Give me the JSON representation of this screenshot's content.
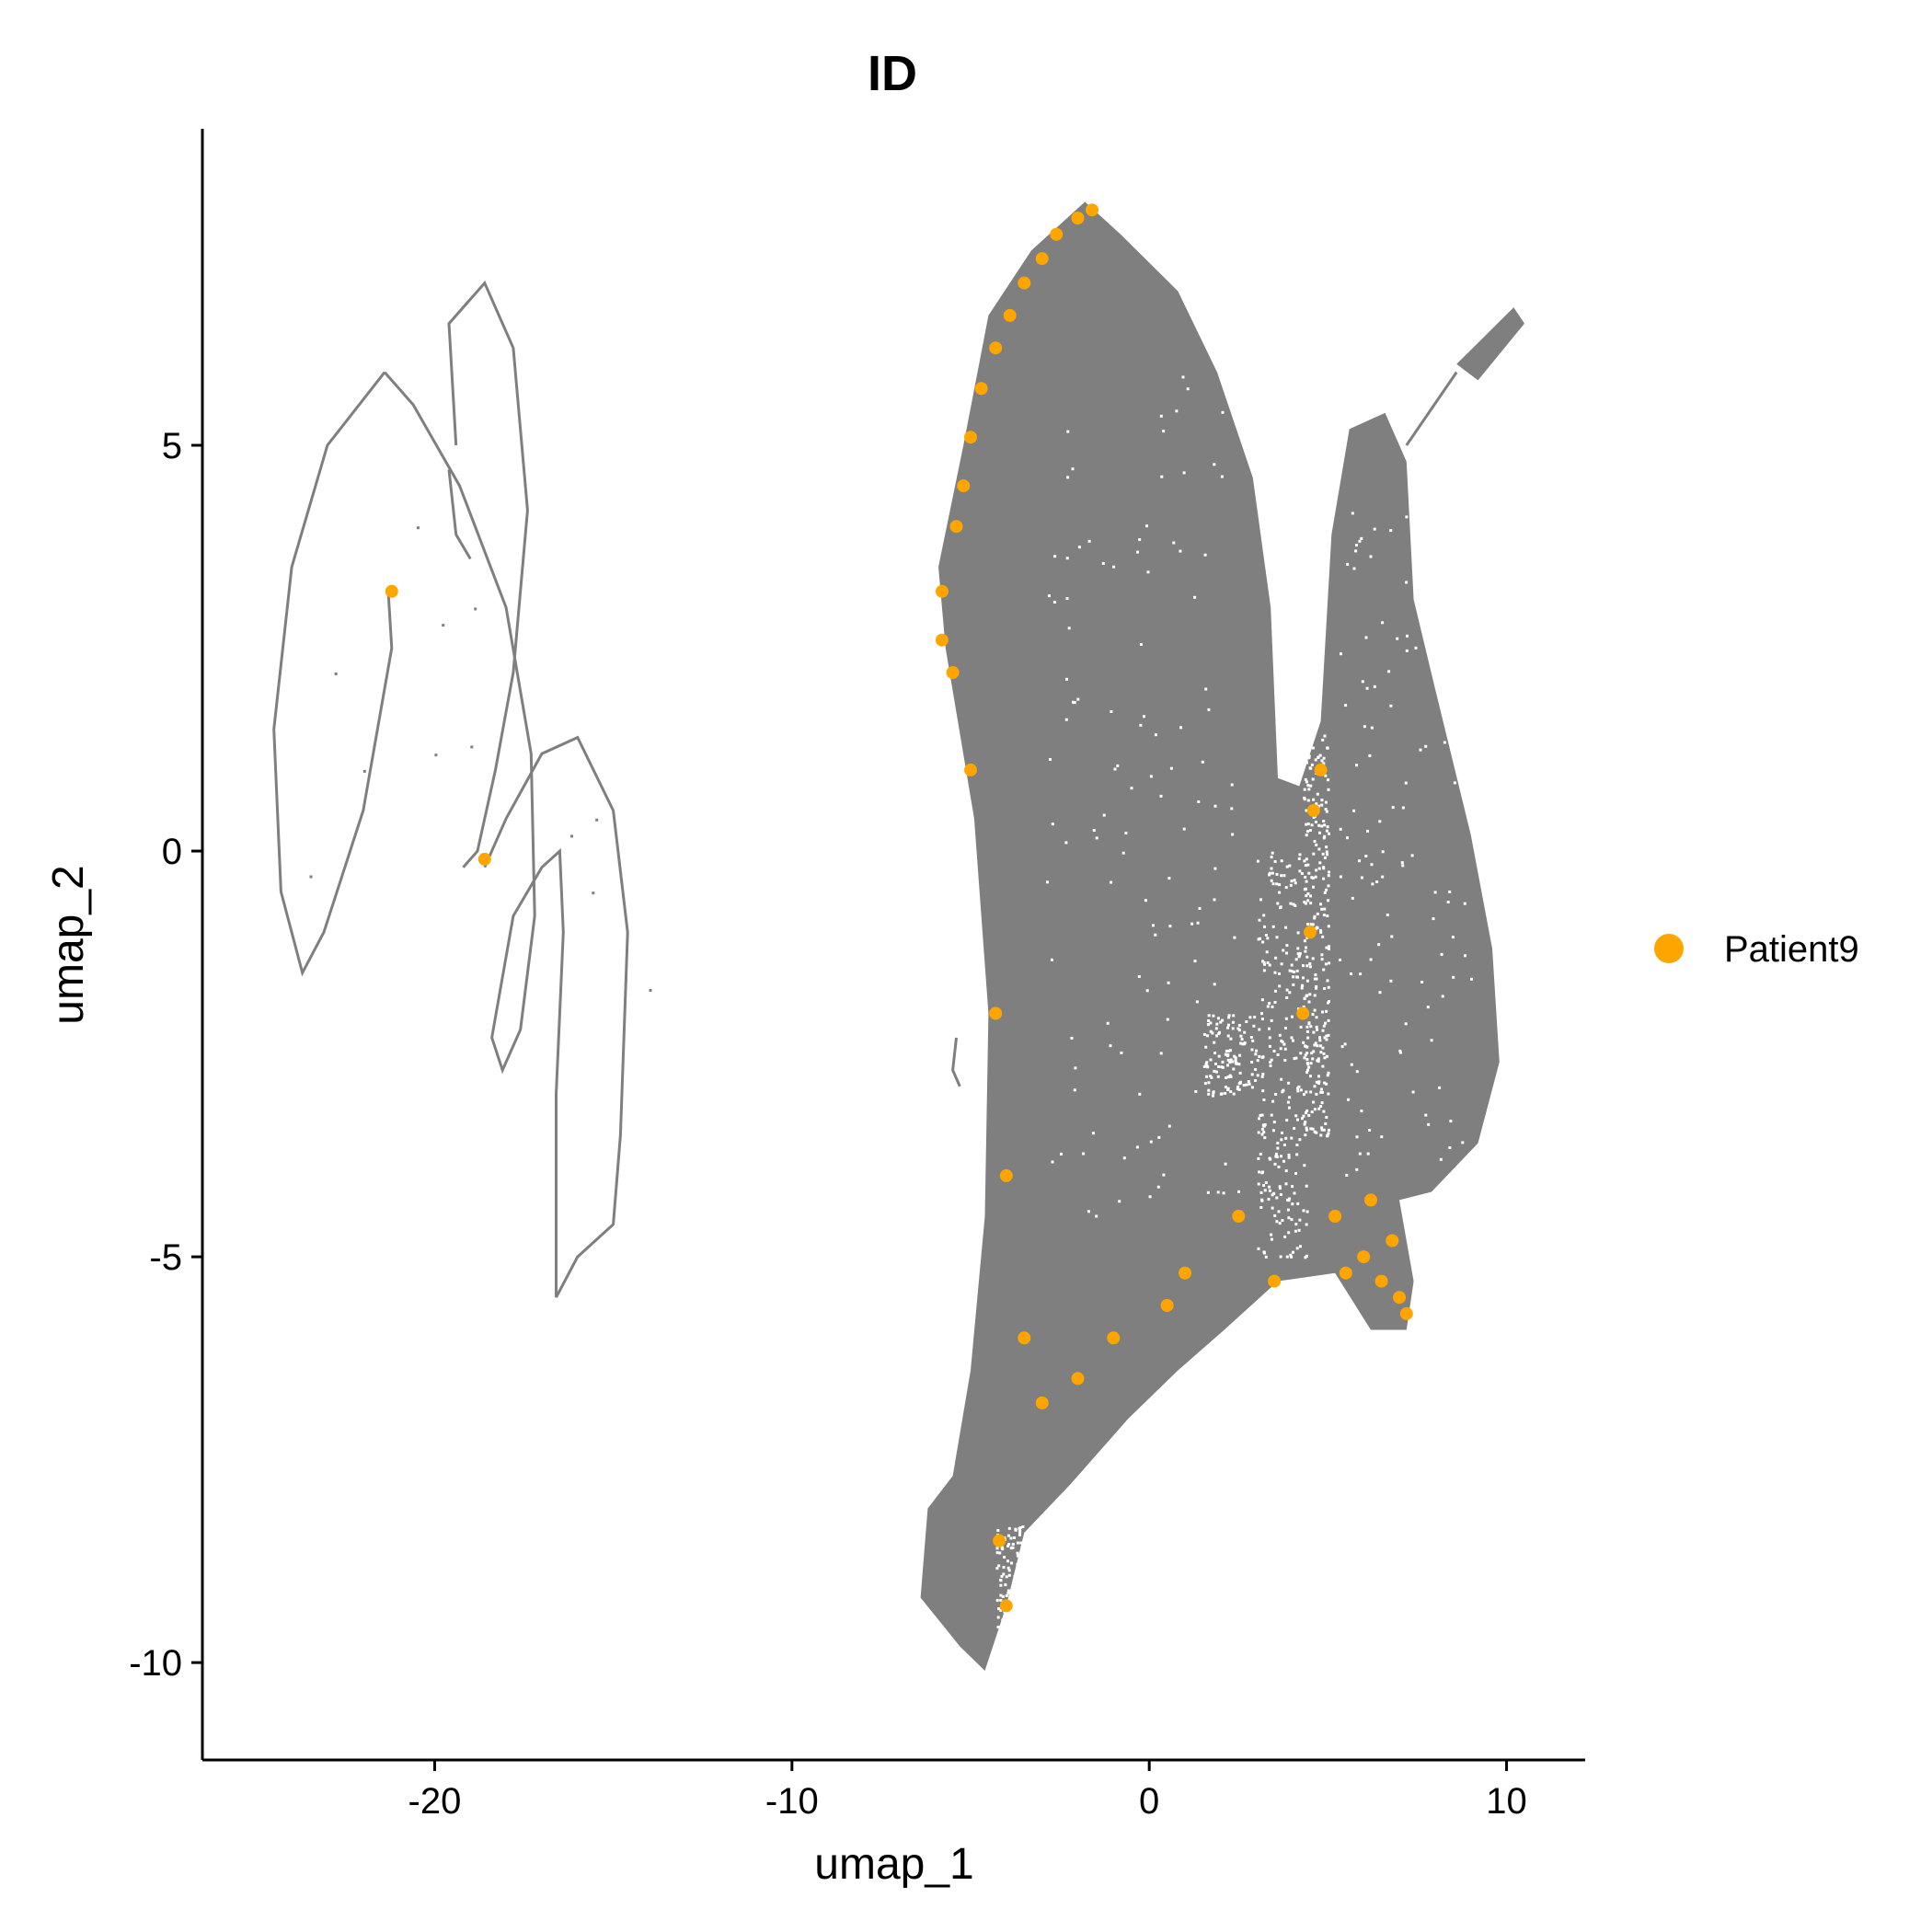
{
  "chart_data": {
    "type": "scatter",
    "title": "ID",
    "xlabel": "umap_1",
    "ylabel": "umap_2",
    "xlim": [
      -26.5,
      12.2
    ],
    "ylim": [
      -11.2,
      8.9
    ],
    "xticks": [
      -20,
      -10,
      0,
      10
    ],
    "yticks": [
      -10,
      -5,
      0,
      5
    ],
    "grid": false,
    "legend": {
      "position": "right",
      "entries": [
        {
          "name": "Patient9",
          "color": "#FFA500"
        }
      ]
    },
    "colors": {
      "highlight": "#FFA500",
      "background": "#7F7F7F"
    },
    "background_cells": "grey, all other cells",
    "series": [
      {
        "name": "Patient9",
        "color": "#FFA500",
        "points": [
          [
            -1.6,
            7.9
          ],
          [
            -2.0,
            7.8
          ],
          [
            -2.6,
            7.6
          ],
          [
            -3.0,
            7.3
          ],
          [
            -3.5,
            7.0
          ],
          [
            -3.9,
            6.6
          ],
          [
            -4.3,
            6.2
          ],
          [
            -4.7,
            5.7
          ],
          [
            -5.0,
            5.1
          ],
          [
            -5.2,
            4.5
          ],
          [
            -5.4,
            4.0
          ],
          [
            -5.8,
            3.2
          ],
          [
            -5.8,
            2.6
          ],
          [
            -5.5,
            2.2
          ],
          [
            -5.0,
            1.0
          ],
          [
            -4.3,
            -2.0
          ],
          [
            -4.0,
            -4.0
          ],
          [
            -3.5,
            -6.0
          ],
          [
            -3.0,
            -6.8
          ],
          [
            -2.0,
            -6.5
          ],
          [
            -1.0,
            -6.0
          ],
          [
            0.5,
            -5.6
          ],
          [
            1.0,
            -5.2
          ],
          [
            2.5,
            -4.5
          ],
          [
            3.5,
            -5.3
          ],
          [
            4.3,
            -2.0
          ],
          [
            4.5,
            -1.0
          ],
          [
            4.6,
            0.5
          ],
          [
            4.8,
            1.0
          ],
          [
            5.2,
            -4.5
          ],
          [
            5.5,
            -5.2
          ],
          [
            6.0,
            -5.0
          ],
          [
            6.5,
            -5.3
          ],
          [
            7.0,
            -5.5
          ],
          [
            7.2,
            -5.7
          ],
          [
            6.8,
            -4.8
          ],
          [
            6.2,
            -4.3
          ],
          [
            -4.2,
            -8.5
          ],
          [
            -4.0,
            -9.3
          ],
          [
            -21.2,
            3.2
          ],
          [
            -18.6,
            -0.1
          ]
        ]
      }
    ]
  }
}
